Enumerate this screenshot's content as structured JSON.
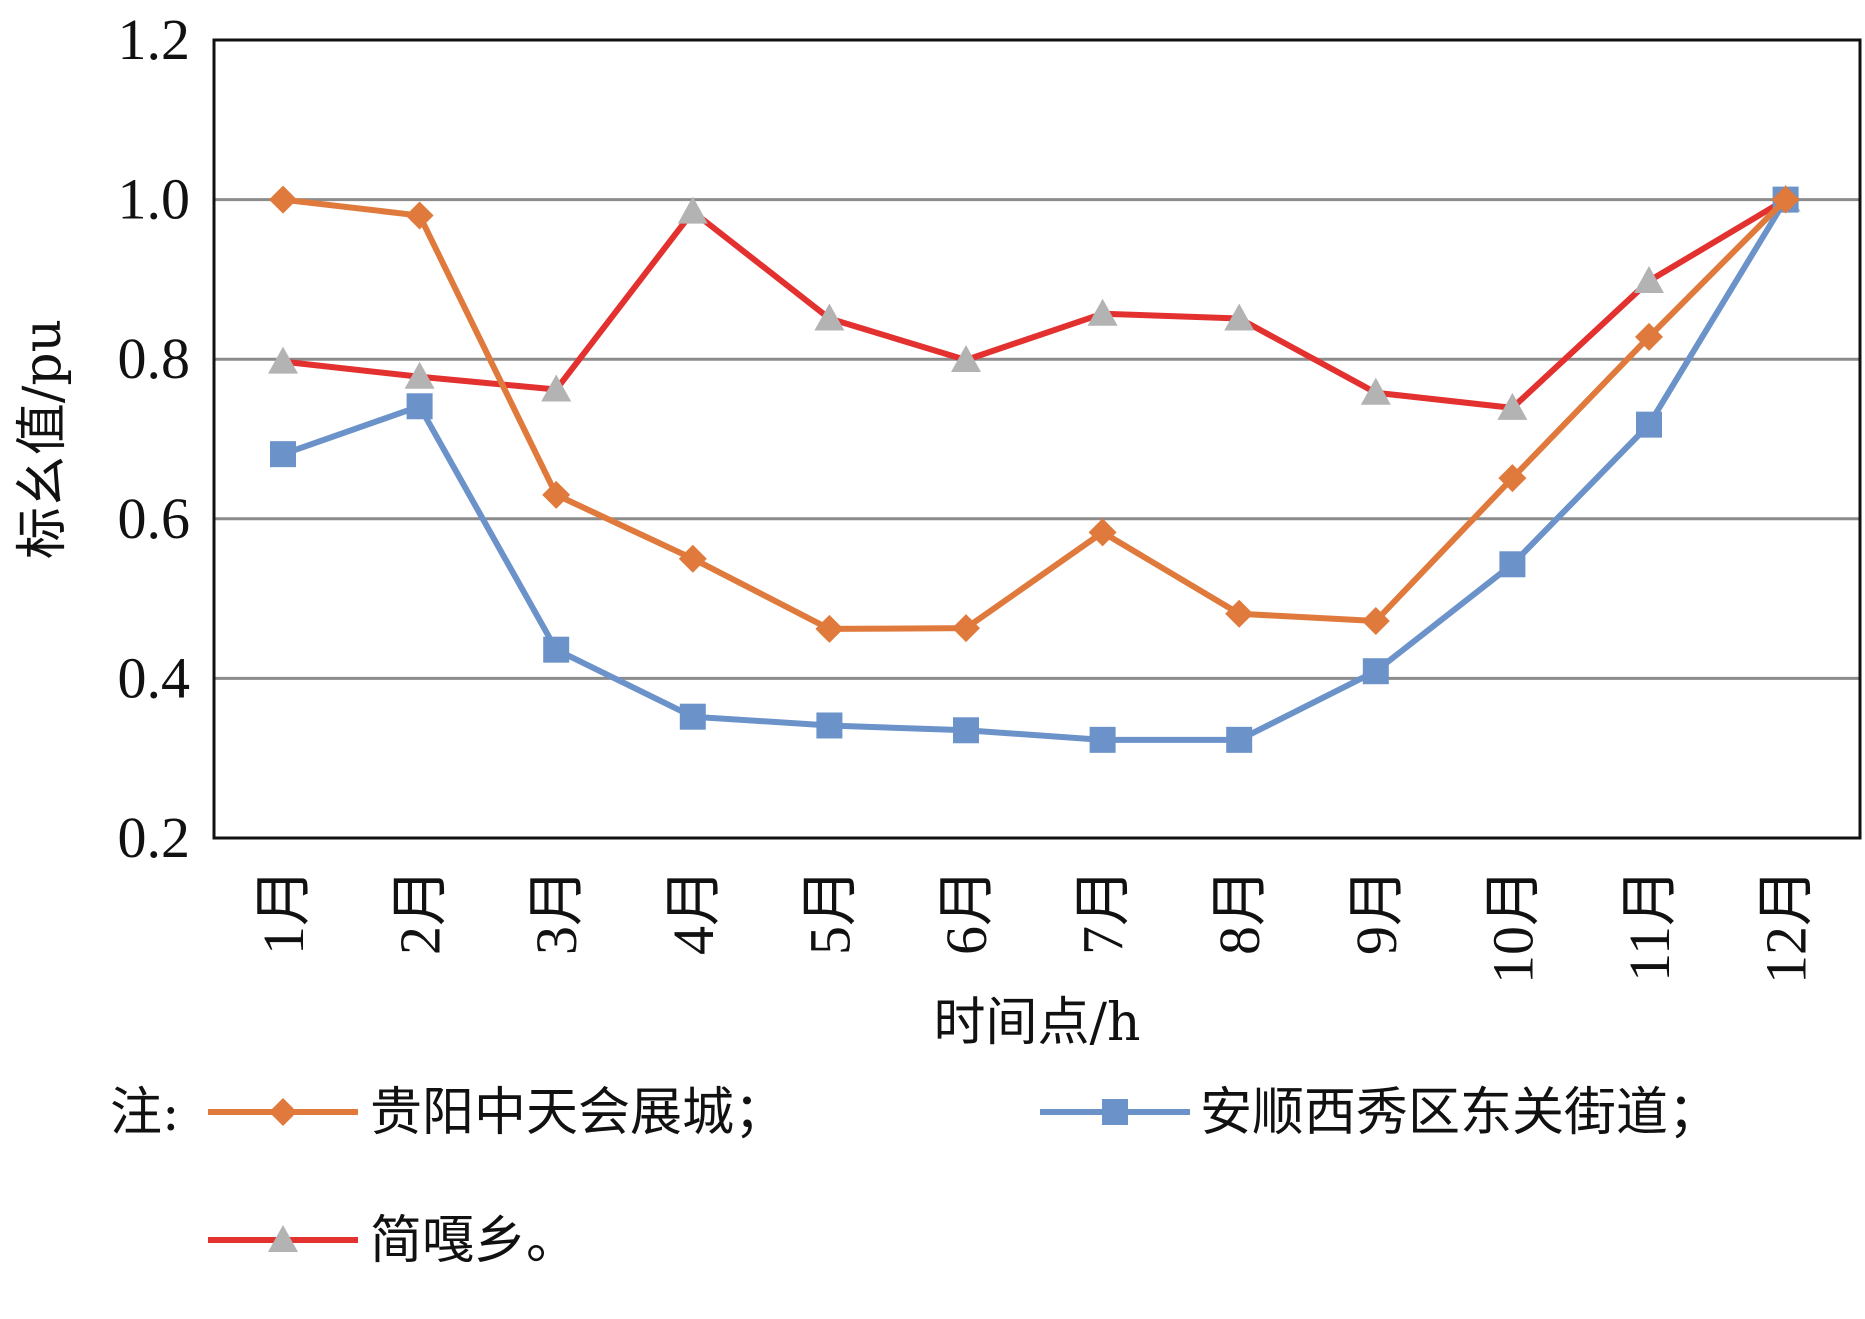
{
  "chart_data": {
    "type": "line",
    "categories": [
      "1月",
      "2月",
      "3月",
      "4月",
      "5月",
      "6月",
      "7月",
      "8月",
      "9月",
      "10月",
      "11月",
      "12月"
    ],
    "series": [
      {
        "name": "贵阳中天会展城；",
        "color": "#e07a3c",
        "marker": "diamond",
        "values": [
          1.0,
          0.98,
          0.63,
          0.55,
          0.462,
          0.463,
          0.583,
          0.481,
          0.472,
          0.651,
          0.828,
          1.0
        ]
      },
      {
        "name": "安顺西秀区东关街道；",
        "color": "#6b93c9",
        "marker": "square",
        "values": [
          0.681,
          0.741,
          0.436,
          0.352,
          0.341,
          0.335,
          0.323,
          0.323,
          0.409,
          0.543,
          0.718,
          1.0
        ]
      },
      {
        "name": "简嘎乡。",
        "color": "#e2312e",
        "marker": "triangle",
        "marker_color": "#b3b3b3",
        "values": [
          0.797,
          0.778,
          0.762,
          0.985,
          0.851,
          0.799,
          0.857,
          0.851,
          0.758,
          0.739,
          0.898,
          1.0
        ]
      }
    ],
    "xlabel": "时间点/h",
    "ylabel": "标幺值/pu",
    "ylim": [
      0.2,
      1.2
    ],
    "yticks": [
      "0.2",
      "0.4",
      "0.6",
      "0.8",
      "1.0",
      "1.2"
    ],
    "grid": true,
    "legend_prefix": "注:",
    "legend_position": "bottom"
  }
}
